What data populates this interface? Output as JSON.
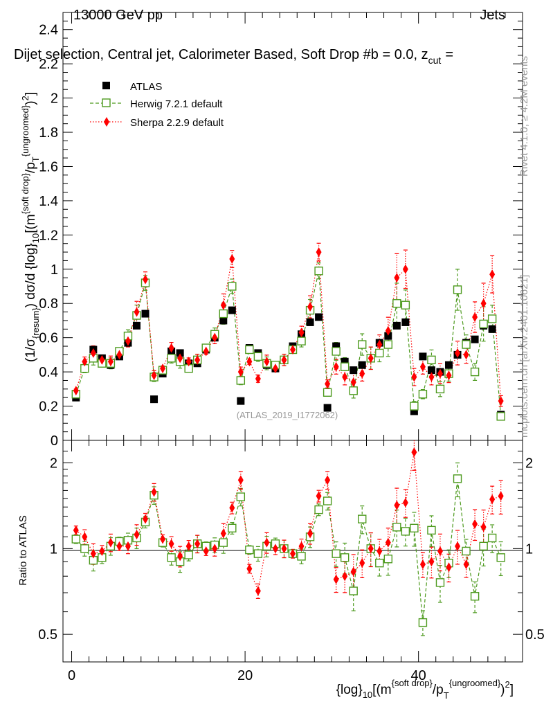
{
  "header": {
    "energy": "13000 GeV pp",
    "category": "Jets",
    "selection": "Dijet selection, Central jet, Calorimeter Based, Soft Drop #b = 0.0, z",
    "selection_sub": "cut",
    "selection_end": "=",
    "rivet": "Rivet 4.1.0, ≥ 4.2M events",
    "mcplots": "mcplots.cern.ch [arXiv:2401.10621]",
    "watermark": "(ATLAS_2019_I1772062)"
  },
  "y_axis": {
    "main": "(1/σ{resum}) dσ/d {log}10[(m^{soft drop}/p_T^{ungroomed})^2]",
    "ratio": "Ratio to ATLAS"
  },
  "x_axis": {
    "label": "{log}10[(m^{soft drop}/p_T^{ungroomed})^2]"
  },
  "legend": {
    "atlas": "ATLAS",
    "herwig": "Herwig 7.2.1 default",
    "sherpa": "Sherpa 2.2.9 default"
  },
  "colors": {
    "atlas": "#000000",
    "herwig": "#4d9a1e",
    "sherpa": "#ff0000"
  },
  "chart_data": {
    "type": "scatter",
    "x": [
      0.5,
      1.5,
      2.5,
      3.5,
      4.5,
      5.5,
      6.5,
      7.5,
      8.5,
      9.5,
      10.5,
      11.5,
      12.5,
      13.5,
      14.5,
      15.5,
      16.5,
      17.5,
      18.5,
      19.5,
      20.5,
      21.5,
      22.5,
      23.5,
      24.5,
      25.5,
      26.5,
      27.5,
      28.5,
      29.5,
      30.5,
      31.5,
      32.5,
      33.5,
      34.5,
      35.5,
      36.5,
      37.5,
      38.5,
      39.5,
      40.5,
      41.5,
      42.5,
      43.5,
      44.5,
      45.5,
      46.5,
      47.5,
      48.5,
      49.5
    ],
    "xlim": [
      -1,
      52
    ],
    "ylim_main": [
      0,
      2.5
    ],
    "yticks_main": [
      0,
      0.2,
      0.4,
      0.6,
      0.8,
      1,
      1.2,
      1.4,
      1.6,
      1.8,
      2,
      2.2,
      2.4
    ],
    "ylim_ratio": [
      0.4,
      2.4
    ],
    "yticks_ratio": [
      0.5,
      1,
      2
    ],
    "xticks": [
      0,
      20,
      40
    ],
    "series": [
      {
        "name": "ATLAS",
        "values": [
          0.25,
          0.42,
          0.53,
          0.48,
          0.44,
          0.49,
          0.57,
          0.67,
          0.74,
          0.24,
          0.39,
          0.52,
          0.51,
          0.45,
          0.45,
          0.53,
          0.6,
          0.7,
          0.76,
          0.23,
          0.54,
          0.51,
          0.44,
          0.42,
          0.47,
          0.55,
          0.62,
          0.69,
          0.72,
          0.19,
          0.55,
          0.46,
          0.41,
          0.44,
          0.48,
          0.57,
          0.61,
          0.67,
          0.69,
          0.17,
          0.49,
          0.41,
          0.4,
          0.44,
          0.5,
          0.57,
          0.59,
          0.67,
          0.65,
          0.15
        ]
      },
      {
        "name": "Herwig 7.2.1 default",
        "values": [
          0.27,
          0.42,
          0.48,
          0.45,
          0.45,
          0.52,
          0.61,
          0.73,
          0.92,
          0.37,
          0.41,
          0.48,
          0.46,
          0.42,
          0.47,
          0.54,
          0.62,
          0.74,
          0.9,
          0.35,
          0.53,
          0.49,
          0.45,
          0.44,
          0.47,
          0.53,
          0.58,
          0.76,
          0.99,
          0.28,
          0.52,
          0.43,
          0.29,
          0.56,
          0.48,
          0.51,
          0.56,
          0.8,
          0.79,
          0.2,
          0.27,
          0.47,
          0.3,
          0.39,
          0.88,
          0.56,
          0.4,
          0.68,
          0.71,
          0.14
        ]
      },
      {
        "name": "Sherpa 2.2.9 default",
        "values": [
          0.29,
          0.46,
          0.51,
          0.47,
          0.46,
          0.5,
          0.58,
          0.75,
          0.94,
          0.38,
          0.42,
          0.54,
          0.48,
          0.46,
          0.47,
          0.52,
          0.6,
          0.79,
          1.06,
          0.4,
          0.46,
          0.36,
          0.46,
          0.42,
          0.47,
          0.53,
          0.63,
          0.78,
          1.1,
          0.33,
          0.43,
          0.37,
          0.34,
          0.39,
          0.48,
          0.56,
          0.64,
          0.95,
          1.0,
          0.37,
          0.43,
          0.37,
          0.39,
          0.38,
          0.51,
          0.5,
          0.72,
          0.8,
          0.97,
          0.23
        ]
      }
    ],
    "ratio": {
      "herwig": [
        1.08,
        1.0,
        0.91,
        0.93,
        1.02,
        1.06,
        1.07,
        1.09,
        1.24,
        1.54,
        1.05,
        0.93,
        0.9,
        0.95,
        1.04,
        1.02,
        1.03,
        1.05,
        1.18,
        1.52,
        0.99,
        0.96,
        1.02,
        1.04,
        1.0,
        0.96,
        0.94,
        1.1,
        1.37,
        1.47,
        0.96,
        0.93,
        0.71,
        1.27,
        1.0,
        0.89,
        0.92,
        1.19,
        1.15,
        1.18,
        0.55,
        1.16,
        0.76,
        0.89,
        1.76,
        0.98,
        0.68,
        1.02,
        1.09,
        0.93
      ],
      "sherpa": [
        1.16,
        1.1,
        0.96,
        0.98,
        1.05,
        1.02,
        1.02,
        1.12,
        1.27,
        1.58,
        1.08,
        1.04,
        0.94,
        1.02,
        1.04,
        0.98,
        1.0,
        1.13,
        1.39,
        1.74,
        0.85,
        0.71,
        1.05,
        1.0,
        1.0,
        0.96,
        1.02,
        1.13,
        1.53,
        1.74,
        0.78,
        0.8,
        0.83,
        0.89,
        1.0,
        0.98,
        1.05,
        1.42,
        1.45,
        2.18,
        0.88,
        0.9,
        0.98,
        0.86,
        1.02,
        0.88,
        1.22,
        1.19,
        1.49,
        1.53
      ]
    }
  }
}
